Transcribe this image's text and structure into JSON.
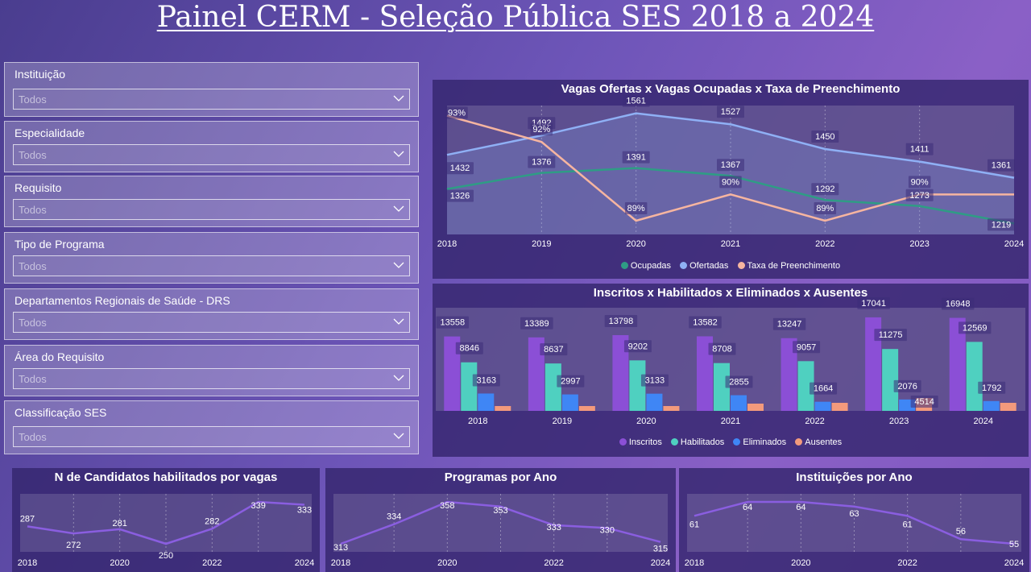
{
  "page": {
    "title": "Painel  CERM - Seleção Pública SES 2018 a 2024"
  },
  "filters": [
    {
      "label": "Instituição",
      "value": "Todos"
    },
    {
      "label": "Especialidade",
      "value": "Todos"
    },
    {
      "label": "Requisito",
      "value": "Todos"
    },
    {
      "label": "Tipo de Programa",
      "value": "Todos"
    },
    {
      "label": "Departamentos Regionais de Saúde - DRS",
      "value": "Todos"
    },
    {
      "label": "Área do Requisito",
      "value": "Todos"
    },
    {
      "label": "Classificação SES",
      "value": "Todos"
    }
  ],
  "icons": {
    "dropdown": "chevron-down-icon"
  },
  "colors": {
    "ocupadas": "#2f9c85",
    "ofertadas": "#8fb0f5",
    "taxa": "#f6b5a0",
    "inscritos": "#8b4fd6",
    "habilitados": "#4fd0c0",
    "eliminados": "#3f86f5",
    "ausentes": "#f39a7c",
    "spark": "#8a5ee0"
  },
  "chart_data": [
    {
      "type": "line",
      "title": "Vagas Ofertas x Vagas Ocupadas x Taxa de Preenchimento",
      "x": [
        "2018",
        "2019",
        "2020",
        "2021",
        "2022",
        "2023",
        "2024"
      ],
      "series": [
        {
          "name": "Ocupadas",
          "values": [
            1326,
            1376,
            1391,
            1367,
            1292,
            1273,
            1219
          ]
        },
        {
          "name": "Ofertadas",
          "values": [
            1432,
            1492,
            1561,
            1527,
            1450,
            1411,
            1361
          ]
        },
        {
          "name": "Taxa de Preenchimento",
          "values": [
            93,
            92,
            89,
            90,
            89,
            90,
            90
          ],
          "labels": [
            "93%",
            "92%",
            "89%",
            "90%",
            "89%",
            "90%",
            ""
          ]
        }
      ]
    },
    {
      "type": "bar",
      "title": "Inscritos x Habilitados x Eliminados x Ausentes",
      "categories": [
        "2018",
        "2019",
        "2020",
        "2021",
        "2022",
        "2023",
        "2024"
      ],
      "series": [
        {
          "name": "Inscritos",
          "values": [
            13558,
            13389,
            13798,
            13582,
            13247,
            17041,
            16948
          ]
        },
        {
          "name": "Habilitados",
          "values": [
            8846,
            8637,
            9202,
            8708,
            9057,
            11275,
            12569
          ]
        },
        {
          "name": "Eliminados",
          "values": [
            3163,
            2997,
            3133,
            2855,
            1664,
            2076,
            1792
          ]
        },
        {
          "name": "Ausentes",
          "values": [
            null,
            null,
            null,
            null,
            null,
            4514,
            null
          ]
        }
      ]
    },
    {
      "type": "line",
      "title": "N de Candidatos habilitados por vagas",
      "x": [
        "2018",
        "2019",
        "2020",
        "2021",
        "2022",
        "2023",
        "2024"
      ],
      "xticks": [
        "2018",
        "2020",
        "2022",
        "2024"
      ],
      "values": [
        287,
        272,
        281,
        250,
        282,
        339,
        333
      ]
    },
    {
      "type": "line",
      "title": "Programas por Ano",
      "x": [
        "2018",
        "2019",
        "2020",
        "2021",
        "2022",
        "2023",
        "2024"
      ],
      "xticks": [
        "2018",
        "2020",
        "2022",
        "2024"
      ],
      "values": [
        313,
        334,
        358,
        353,
        333,
        330,
        315
      ]
    },
    {
      "type": "line",
      "title": "Instituições por Ano",
      "x": [
        "2018",
        "2019",
        "2020",
        "2021",
        "2022",
        "2023",
        "2024"
      ],
      "xticks": [
        "2018",
        "2020",
        "2022",
        "2024"
      ],
      "values": [
        61,
        64,
        64,
        63,
        61,
        56,
        55
      ]
    }
  ]
}
